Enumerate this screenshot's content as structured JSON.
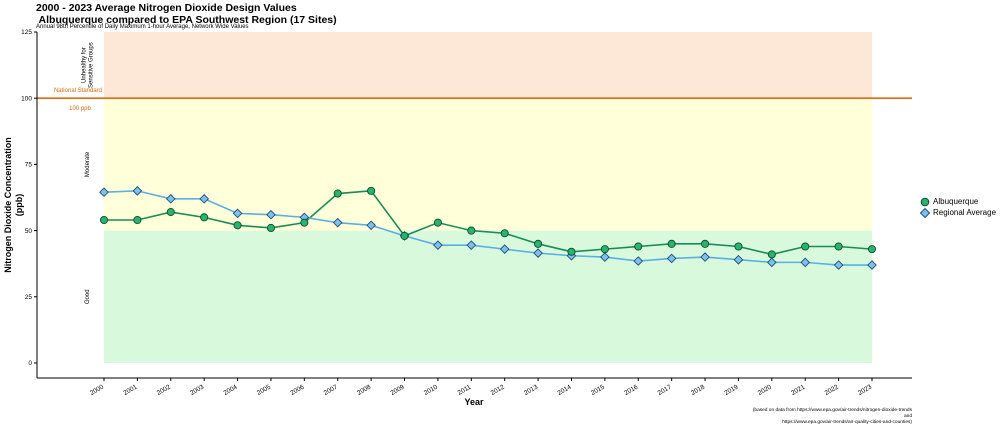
{
  "title": "2000 - 2023 Average Nitrogen Dioxide Design Values\n Albuquerque compared to EPA Southwest Region (17 Sites)",
  "subtitle": "Annual 98th Percentile of Daily Maximum 1-hour Average, Network Wide Values",
  "source_line1": "(based on data from https://www.epa.gov/air-trends/nitrogen-dioxide-trends",
  "source_line2": "and",
  "source_line3": "https://www.epa.gov/air-trends/air-quality-cities-and-counties)",
  "chart_data": {
    "type": "line",
    "xlabel": "Year",
    "ylabel": "Nitrogen Dioxide Concentration\n(ppb)",
    "ylim": [
      0,
      125
    ],
    "yticks": [
      0,
      25,
      50,
      75,
      100,
      125
    ],
    "x": [
      2000,
      2001,
      2002,
      2003,
      2004,
      2005,
      2006,
      2007,
      2008,
      2009,
      2010,
      2011,
      2012,
      2013,
      2014,
      2015,
      2016,
      2017,
      2018,
      2019,
      2020,
      2021,
      2022,
      2023
    ],
    "series": [
      {
        "name": "Albuquerque",
        "color": "#1a8a5a",
        "marker": "circle",
        "values": [
          54,
          54,
          57,
          55,
          52,
          51,
          53,
          64,
          65,
          48,
          53,
          50,
          49,
          45,
          42,
          43,
          44,
          45,
          45,
          44,
          41,
          44,
          44,
          43
        ]
      },
      {
        "name": "Regional Average",
        "color": "#5aaee8",
        "marker": "diamond",
        "values": [
          64.5,
          65,
          62,
          62,
          56.5,
          56,
          55,
          53,
          52,
          48,
          44.5,
          44.5,
          43,
          41.5,
          40.5,
          40,
          38.5,
          39.5,
          40,
          39,
          38,
          38,
          37,
          37
        ]
      }
    ],
    "bands": [
      {
        "label": "Good",
        "from": 0,
        "to": 50,
        "color": "#d9f9dc"
      },
      {
        "label": "Moderate",
        "from": 50,
        "to": 100,
        "color": "#ffffd9"
      },
      {
        "label": "Unhealthy for\nSensitive Groups",
        "from": 100,
        "to": 125,
        "color": "#fde8d8"
      }
    ],
    "standard": {
      "value": 100,
      "label": "National Standard",
      "value_label": "100 ppb",
      "color": "#e06a10"
    },
    "legend_position": "right"
  }
}
